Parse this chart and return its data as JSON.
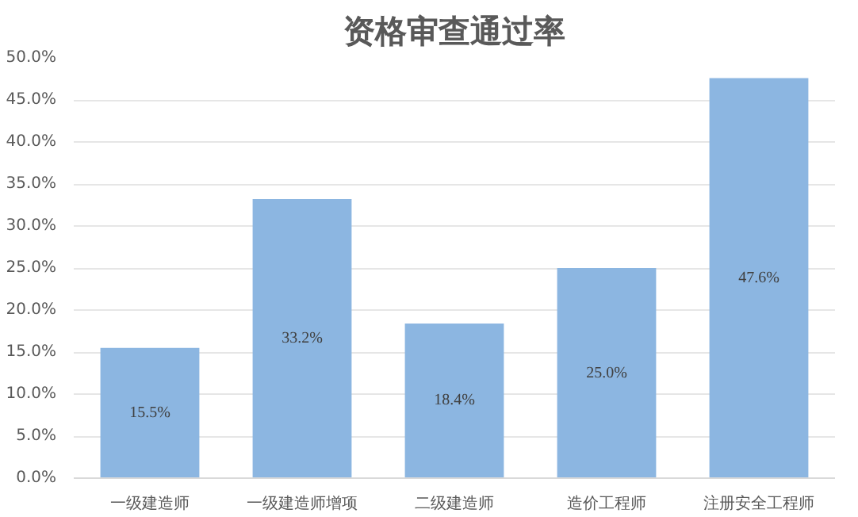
{
  "chart_data": {
    "type": "bar",
    "title": "资格审查通过率",
    "categories": [
      "一级建造师",
      "一级建造师增项",
      "二级建造师",
      "造价工程师",
      "注册安全工程师"
    ],
    "values": [
      15.5,
      33.2,
      18.4,
      25.0,
      47.6
    ],
    "value_labels": [
      "15.5%",
      "33.2%",
      "18.4%",
      "25.0%",
      "47.6%"
    ],
    "color": "#8cb6e1",
    "ylim": [
      0,
      50
    ],
    "yticks": [
      {
        "value": 0,
        "label": "0.0%"
      },
      {
        "value": 5,
        "label": "5.0%"
      },
      {
        "value": 10,
        "label": "10.0%"
      },
      {
        "value": 15,
        "label": "15.0%"
      },
      {
        "value": 20,
        "label": "20.0%"
      },
      {
        "value": 25,
        "label": "25.0%"
      },
      {
        "value": 30,
        "label": "30.0%"
      },
      {
        "value": 35,
        "label": "35.0%"
      },
      {
        "value": 40,
        "label": "40.0%"
      },
      {
        "value": 45,
        "label": "45.0%"
      },
      {
        "value": 50,
        "label": "50.0%"
      }
    ],
    "grid": "y"
  }
}
